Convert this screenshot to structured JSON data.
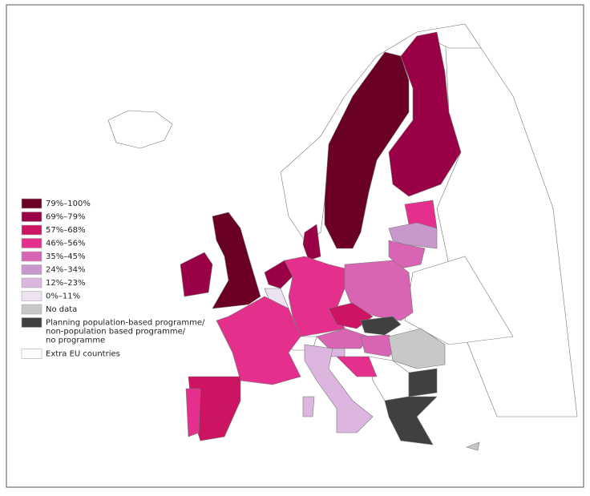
{
  "legend": [
    {
      "label": "79%–100%",
      "color": "#6b0026"
    },
    {
      "label": "69%–79%",
      "color": "#9a0045"
    },
    {
      "label": "57%–68%",
      "color": "#cc1462"
    },
    {
      "label": "46%–56%",
      "color": "#e4308c"
    },
    {
      "label": "35%–45%",
      "color": "#da64b4"
    },
    {
      "label": "24%–34%",
      "color": "#c898cc"
    },
    {
      "label": "12%–23%",
      "color": "#dcb6de"
    },
    {
      "label": "0%–11%",
      "color": "#ece2f0"
    },
    {
      "label": "No data",
      "color": "#c8c8c8"
    },
    {
      "lines": [
        "Planning population-based programme/",
        "non-population based programme/",
        "no programme"
      ],
      "color": "#404040"
    },
    {
      "label": "Extra EU countries",
      "color": "#ffffff"
    }
  ]
}
